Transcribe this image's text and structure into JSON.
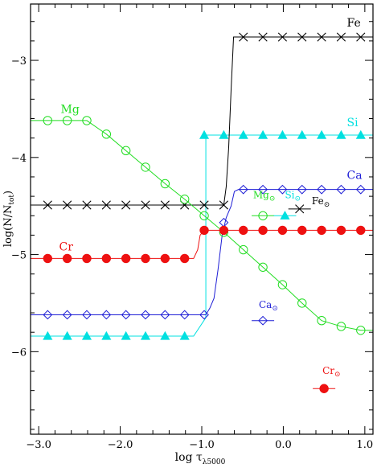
{
  "chart_data": {
    "type": "line",
    "xlabel": "log τ",
    "xlabel_sub": "λ5000",
    "ylabel": "log(N/N",
    "ylabel_sub": "tot",
    "ylabel_end": ")",
    "xlim": [
      -3.1,
      1.1
    ],
    "ylim": [
      -6.85,
      -2.42
    ],
    "xticks": [
      -3.0,
      -2.0,
      -1.0,
      0.0,
      1.0
    ],
    "xtick_labels": [
      "−3.0",
      "−2.0",
      "−1.0",
      "0.0",
      "1.0"
    ],
    "yticks": [
      -3,
      -4,
      -5,
      -6
    ],
    "ytick_labels": [
      "−3",
      "−4",
      "−5",
      "−6"
    ],
    "series": [
      {
        "name": "Mg",
        "color": "#22dd22",
        "marker": "circle-open",
        "x": [
          -3.1,
          -2.89,
          -2.65,
          -2.41,
          -2.17,
          -1.93,
          -1.69,
          -1.45,
          -1.21,
          -0.97,
          -0.73,
          -0.49,
          -0.25,
          -0.01,
          0.23,
          0.47,
          0.71,
          0.95,
          1.1
        ],
        "y": [
          -3.62,
          -3.62,
          -3.62,
          -3.62,
          -3.76,
          -3.93,
          -4.1,
          -4.27,
          -4.43,
          -4.6,
          -4.77,
          -4.95,
          -5.13,
          -5.31,
          -5.5,
          -5.68,
          -5.74,
          -5.78,
          -5.78
        ],
        "markers_x": [
          -2.89,
          -2.65,
          -2.41,
          -2.17,
          -1.93,
          -1.69,
          -1.45,
          -1.21,
          -0.97,
          -0.73,
          -0.49,
          -0.25,
          -0.01,
          0.23,
          0.47,
          0.71,
          0.95
        ],
        "label": {
          "text": "Mg",
          "x": -2.73,
          "y": -3.54
        }
      },
      {
        "name": "Si",
        "color": "#00e0e0",
        "marker": "triangle-filled",
        "x": [
          -3.1,
          -1.1,
          -0.95,
          -0.95,
          1.1
        ],
        "y": [
          -5.84,
          -5.84,
          -5.65,
          -3.77,
          -3.77
        ],
        "markers_x": [
          -2.89,
          -2.65,
          -2.41,
          -2.17,
          -1.93,
          -1.69,
          -1.45,
          -1.21,
          -0.97,
          -0.73,
          -0.49,
          -0.25,
          -0.01,
          0.23,
          0.47,
          0.71,
          0.95
        ],
        "markers_y": [
          -5.84,
          -5.84,
          -5.84,
          -5.84,
          -5.84,
          -5.84,
          -5.84,
          -5.84,
          -3.77,
          -3.77,
          -3.77,
          -3.77,
          -3.77,
          -3.77,
          -3.77,
          -3.77,
          -3.77
        ],
        "label": {
          "text": "Si",
          "x": 0.78,
          "y": -3.68
        }
      },
      {
        "name": "Ca",
        "color": "#1f1fd6",
        "marker": "diamond-open",
        "x": [
          -3.1,
          -0.95,
          -0.9,
          -0.85,
          -0.8,
          -0.75,
          -0.7,
          -0.64,
          -0.6,
          -0.55,
          1.1
        ],
        "y": [
          -5.62,
          -5.62,
          -5.55,
          -5.45,
          -5.15,
          -4.8,
          -4.62,
          -4.5,
          -4.35,
          -4.33,
          -4.33
        ],
        "markers_x": [
          -2.89,
          -2.65,
          -2.41,
          -2.17,
          -1.93,
          -1.69,
          -1.45,
          -1.21,
          -0.97,
          -0.73,
          -0.49,
          -0.25,
          -0.01,
          0.23,
          0.47,
          0.71,
          0.95
        ],
        "markers_y": [
          -5.62,
          -5.62,
          -5.62,
          -5.62,
          -5.62,
          -5.62,
          -5.62,
          -5.62,
          -5.62,
          -4.67,
          -4.33,
          -4.33,
          -4.33,
          -4.33,
          -4.33,
          -4.33,
          -4.33
        ],
        "label": {
          "text": "Ca",
          "x": 0.78,
          "y": -4.22
        }
      },
      {
        "name": "Fe",
        "color": "#000000",
        "marker": "cross",
        "x": [
          -3.1,
          -0.73,
          -0.7,
          -0.67,
          -0.64,
          -0.61,
          1.1
        ],
        "y": [
          -4.49,
          -4.49,
          -4.3,
          -3.9,
          -3.3,
          -2.76,
          -2.76
        ],
        "markers_x": [
          -2.89,
          -2.65,
          -2.41,
          -2.17,
          -1.93,
          -1.69,
          -1.45,
          -1.21,
          -0.97,
          -0.73,
          -0.49,
          -0.25,
          -0.01,
          0.23,
          0.47,
          0.71,
          0.95
        ],
        "markers_y": [
          -4.49,
          -4.49,
          -4.49,
          -4.49,
          -4.49,
          -4.49,
          -4.49,
          -4.49,
          -4.49,
          -4.49,
          -2.76,
          -2.76,
          -2.76,
          -2.76,
          -2.76,
          -2.76,
          -2.76
        ],
        "label": {
          "text": "Fe",
          "x": 0.78,
          "y": -2.65
        }
      },
      {
        "name": "Cr",
        "color": "#ee1111",
        "marker": "circle-filled",
        "x": [
          -3.1,
          -1.1,
          -1.05,
          -1.02,
          -0.97,
          1.1
        ],
        "y": [
          -5.04,
          -5.04,
          -4.95,
          -4.8,
          -4.75,
          -4.75
        ],
        "markers_x": [
          -2.89,
          -2.65,
          -2.41,
          -2.17,
          -1.93,
          -1.69,
          -1.45,
          -1.21,
          -0.97,
          -0.73,
          -0.49,
          -0.25,
          -0.01,
          0.23,
          0.47,
          0.71,
          0.95
        ],
        "markers_y": [
          -5.04,
          -5.04,
          -5.04,
          -5.04,
          -5.04,
          -5.04,
          -5.04,
          -5.04,
          -4.75,
          -4.75,
          -4.75,
          -4.75,
          -4.75,
          -4.75,
          -4.75,
          -4.75,
          -4.75
        ],
        "label": {
          "text": "Cr",
          "x": -2.75,
          "y": -4.96
        }
      }
    ],
    "solar": [
      {
        "name": "Mg",
        "label": "Mg",
        "sub": "⊙",
        "color": "#22dd22",
        "marker": "circle-open",
        "x": -0.25,
        "y": -4.6,
        "label_x": -0.37,
        "label_y": -4.42
      },
      {
        "name": "Si",
        "label": "Si",
        "sub": "⊙",
        "color": "#00e0e0",
        "marker": "triangle-filled",
        "x": 0.02,
        "y": -4.6,
        "label_x": 0.02,
        "label_y": -4.42
      },
      {
        "name": "Fe",
        "label": "Fe",
        "sub": "⊙",
        "color": "#000000",
        "marker": "cross",
        "x": 0.2,
        "y": -4.53,
        "label_x": 0.35,
        "label_y": -4.48
      },
      {
        "name": "Ca",
        "label": "Ca",
        "sub": "⊙",
        "color": "#1f1fd6",
        "marker": "diamond-open",
        "x": -0.25,
        "y": -5.68,
        "label_x": -0.3,
        "label_y": -5.55
      },
      {
        "name": "Cr",
        "label": "Cr",
        "sub": "⊙",
        "color": "#ee1111",
        "marker": "circle-filled",
        "x": 0.5,
        "y": -6.38,
        "label_x": 0.48,
        "label_y": -6.23
      }
    ]
  }
}
